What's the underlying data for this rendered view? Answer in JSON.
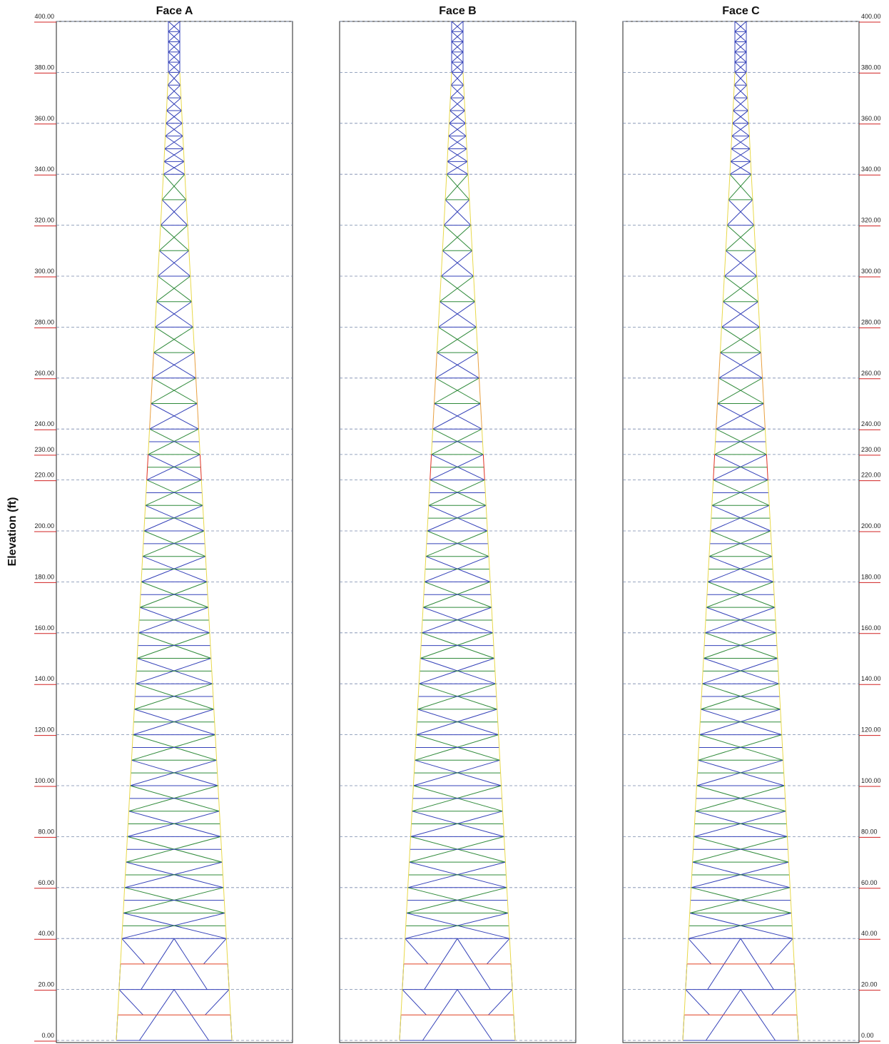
{
  "y_axis_label": "Elevation (ft)",
  "elevation_range": [
    0,
    400
  ],
  "elevation_ticks": [
    {
      "value": 400,
      "label": "400.00"
    },
    {
      "value": 380,
      "label": "380.00"
    },
    {
      "value": 360,
      "label": "360.00"
    },
    {
      "value": 340,
      "label": "340.00"
    },
    {
      "value": 320,
      "label": "320.00"
    },
    {
      "value": 300,
      "label": "300.00"
    },
    {
      "value": 280,
      "label": "280.00"
    },
    {
      "value": 260,
      "label": "260.00"
    },
    {
      "value": 240,
      "label": "240.00"
    },
    {
      "value": 230,
      "label": "230.00"
    },
    {
      "value": 220,
      "label": "220.00"
    },
    {
      "value": 200,
      "label": "200.00"
    },
    {
      "value": 180,
      "label": "180.00"
    },
    {
      "value": 160,
      "label": "160.00"
    },
    {
      "value": 140,
      "label": "140.00"
    },
    {
      "value": 120,
      "label": "120.00"
    },
    {
      "value": 100,
      "label": "100.00"
    },
    {
      "value": 80,
      "label": "80.00"
    },
    {
      "value": 60,
      "label": "60.00"
    },
    {
      "value": 40,
      "label": "40.00"
    },
    {
      "value": 20,
      "label": "20.00"
    },
    {
      "value": 0,
      "label": "0.00"
    }
  ],
  "faces": [
    {
      "title": "Face A"
    },
    {
      "title": "Face B"
    },
    {
      "title": "Face C"
    }
  ]
}
